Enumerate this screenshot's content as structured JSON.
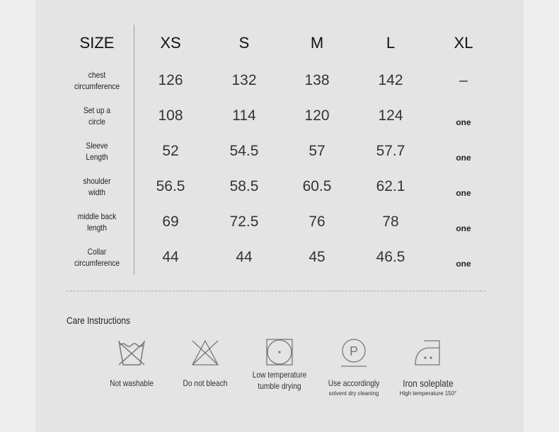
{
  "table": {
    "headers": [
      "SIZE",
      "XS",
      "S",
      "M",
      "L",
      "XL"
    ],
    "rows": [
      {
        "label": [
          "chest",
          "circumference"
        ],
        "values": [
          "126",
          "132",
          "138",
          "142",
          "–"
        ]
      },
      {
        "label": [
          "Set up a",
          "circle"
        ],
        "values": [
          "108",
          "114",
          "120",
          "124",
          "one"
        ]
      },
      {
        "label": [
          "Sleeve",
          "Length"
        ],
        "values": [
          "52",
          "54.5",
          "57",
          "57.7",
          "one"
        ]
      },
      {
        "label": [
          "shoulder",
          "width"
        ],
        "values": [
          "56.5",
          "58.5",
          "60.5",
          "62.1",
          "one"
        ]
      },
      {
        "label": [
          "middle back",
          "length"
        ],
        "values": [
          "69",
          "72.5",
          "76",
          "78",
          "one"
        ]
      },
      {
        "label": [
          "Collar",
          "circumference"
        ],
        "values": [
          "44",
          "44",
          "45",
          "46.5",
          "one"
        ]
      }
    ]
  },
  "care": {
    "title": "Care Instructions",
    "items": [
      {
        "icon": "no-wash-icon",
        "label": "Not washable",
        "sub": ""
      },
      {
        "icon": "no-bleach-icon",
        "label": "Do not bleach",
        "sub": ""
      },
      {
        "icon": "tumble-dry-low-icon",
        "label": "Low temperature tumble drying",
        "sub": ""
      },
      {
        "icon": "dry-clean-p-icon",
        "label": "Use accordingly",
        "sub": "solvent dry cleaning"
      },
      {
        "icon": "iron-icon",
        "label": "Iron soleplate",
        "sub": "High temperature 150°"
      }
    ]
  }
}
